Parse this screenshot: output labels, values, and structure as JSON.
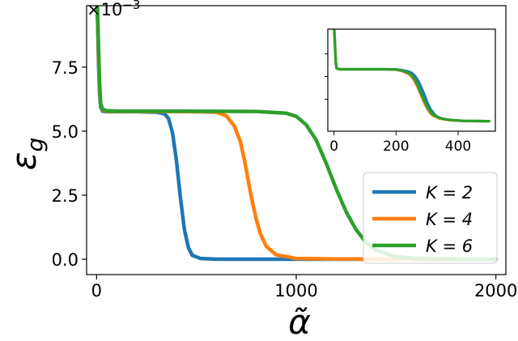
{
  "chart_data": {
    "type": "line",
    "title": "",
    "xlabel": "α̃",
    "ylabel": "ε",
    "ylabel_sub": "g",
    "y_multiplier": "×10",
    "y_multiplier_exp": "−3",
    "xlim": [
      -50,
      2050
    ],
    "ylim": [
      -0.6,
      9.9
    ],
    "x_ticks": [
      0,
      1000,
      2000
    ],
    "x_tick_labels": [
      "0",
      "1000",
      "2000"
    ],
    "y_ticks": [
      0.0,
      2.5,
      5.0,
      7.5
    ],
    "y_tick_labels": [
      "0.0",
      "2.5",
      "5.0",
      "7.5"
    ],
    "legend_position": "lower-right",
    "series": [
      {
        "name": "K = 2",
        "color": "#1f77b4",
        "x": [
          0,
          5,
          10,
          15,
          20,
          30,
          50,
          100,
          200,
          300,
          340,
          360,
          380,
          400,
          420,
          440,
          460,
          480,
          520,
          600,
          800,
          1200,
          1600,
          2000
        ],
        "y": [
          10.5,
          9.3,
          7.6,
          6.5,
          5.95,
          5.78,
          5.76,
          5.76,
          5.76,
          5.74,
          5.68,
          5.5,
          4.95,
          3.85,
          2.4,
          1.15,
          0.45,
          0.15,
          0.03,
          0.0,
          0.0,
          0.0,
          0.0,
          0.0
        ]
      },
      {
        "name": "K = 4",
        "color": "#ff7f0e",
        "x": [
          0,
          5,
          10,
          15,
          20,
          30,
          50,
          100,
          300,
          500,
          600,
          650,
          690,
          720,
          740,
          760,
          780,
          800,
          820,
          850,
          900,
          1000,
          1200,
          1600,
          2000
        ],
        "y": [
          10.5,
          9.5,
          7.9,
          6.7,
          6.05,
          5.82,
          5.78,
          5.77,
          5.77,
          5.76,
          5.74,
          5.6,
          5.2,
          4.6,
          3.9,
          3.05,
          2.25,
          1.55,
          1.0,
          0.5,
          0.17,
          0.03,
          0.01,
          0.0,
          0.0
        ]
      },
      {
        "name": "K = 6",
        "color": "#2ca02c",
        "x": [
          0,
          5,
          10,
          15,
          20,
          30,
          50,
          100,
          400,
          800,
          950,
          1000,
          1050,
          1100,
          1150,
          1200,
          1250,
          1300,
          1350,
          1400,
          1500,
          1600,
          1800,
          2000
        ],
        "y": [
          10.5,
          9.7,
          8.2,
          6.9,
          6.1,
          5.85,
          5.8,
          5.78,
          5.78,
          5.77,
          5.7,
          5.58,
          5.25,
          4.65,
          3.75,
          2.75,
          1.85,
          1.15,
          0.65,
          0.35,
          0.1,
          0.03,
          0.01,
          0.0
        ]
      }
    ],
    "inset": {
      "xlim": [
        -20,
        520
      ],
      "ylim": [
        -0.1,
        1.02
      ],
      "x_ticks": [
        0,
        200,
        400
      ],
      "x_tick_labels": [
        "0",
        "200",
        "400"
      ],
      "y_ticks": [
        0.25,
        0.5,
        0.75
      ],
      "series": [
        {
          "name": "K = 2",
          "color": "#1f77b4",
          "x": [
            0,
            2,
            4,
            6,
            8,
            12,
            20,
            40,
            100,
            160,
            200,
            220,
            240,
            250,
            260,
            270,
            280,
            290,
            300,
            310,
            320,
            330,
            350,
            380,
            420,
            500
          ],
          "y": [
            1.05,
            0.95,
            0.8,
            0.66,
            0.6,
            0.585,
            0.58,
            0.58,
            0.58,
            0.58,
            0.578,
            0.57,
            0.555,
            0.54,
            0.51,
            0.46,
            0.39,
            0.31,
            0.22,
            0.15,
            0.1,
            0.065,
            0.035,
            0.02,
            0.012,
            0.01
          ]
        },
        {
          "name": "K = 4",
          "color": "#ff7f0e",
          "x": [
            0,
            2,
            4,
            6,
            8,
            12,
            20,
            40,
            100,
            160,
            200,
            220,
            240,
            250,
            260,
            270,
            280,
            290,
            300,
            310,
            320,
            340,
            370,
            420,
            500
          ],
          "y": [
            1.05,
            0.93,
            0.78,
            0.65,
            0.6,
            0.585,
            0.58,
            0.58,
            0.58,
            0.58,
            0.575,
            0.56,
            0.53,
            0.5,
            0.45,
            0.38,
            0.3,
            0.22,
            0.15,
            0.1,
            0.07,
            0.04,
            0.022,
            0.013,
            0.01
          ]
        },
        {
          "name": "K = 6",
          "color": "#2ca02c",
          "x": [
            0,
            2,
            4,
            6,
            8,
            12,
            20,
            40,
            100,
            160,
            200,
            220,
            240,
            250,
            260,
            270,
            280,
            290,
            300,
            310,
            320,
            340,
            370,
            420,
            500
          ],
          "y": [
            1.05,
            0.92,
            0.76,
            0.64,
            0.59,
            0.585,
            0.58,
            0.58,
            0.58,
            0.58,
            0.577,
            0.565,
            0.54,
            0.515,
            0.47,
            0.4,
            0.32,
            0.24,
            0.17,
            0.115,
            0.08,
            0.045,
            0.025,
            0.014,
            0.01
          ]
        }
      ]
    }
  }
}
